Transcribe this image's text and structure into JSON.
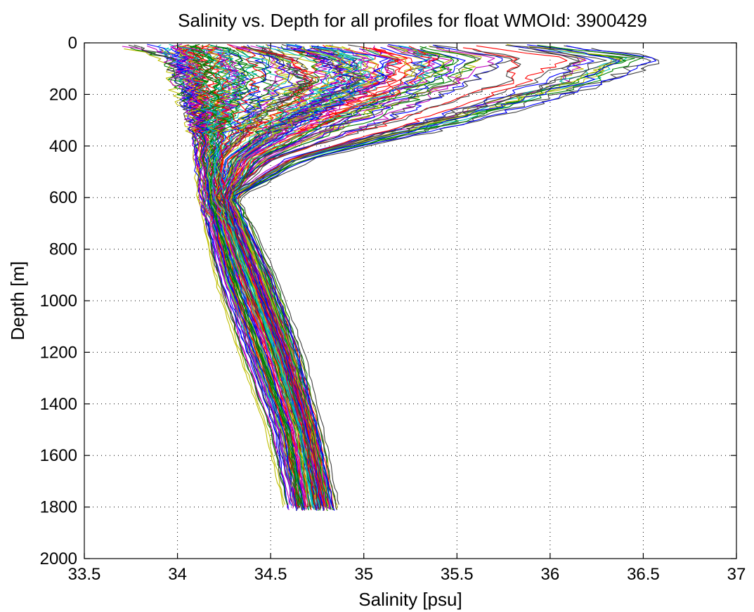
{
  "chart_data": {
    "type": "line",
    "title": "Salinity vs. Depth for all profiles for float WMOId: 3900429",
    "xlabel": "Salinity [psu]",
    "ylabel": "Depth [m]",
    "xlim": [
      33.5,
      37
    ],
    "ylim": [
      0,
      2000
    ],
    "y_reversed": true,
    "grid": true,
    "xticks": [
      33.5,
      34,
      34.5,
      35,
      35.5,
      36,
      36.5,
      37
    ],
    "yticks": [
      0,
      200,
      400,
      600,
      800,
      1000,
      1200,
      1400,
      1600,
      1800,
      2000
    ],
    "xtick_labels": [
      "33.5",
      "34",
      "34.5",
      "35",
      "35.5",
      "36",
      "36.5",
      "37"
    ],
    "ytick_labels": [
      "0",
      "200",
      "400",
      "600",
      "800",
      "1000",
      "1200",
      "1400",
      "1600",
      "1800",
      "2000"
    ],
    "series_colors": [
      "#0000ff",
      "#008000",
      "#ff0000",
      "#00bfbf",
      "#bf00bf",
      "#bfbf00",
      "#404040"
    ],
    "profile_count": 170,
    "series": [
      {
        "x": [
          33.9,
          34.0,
          34.05,
          34.12,
          34.13,
          34.15,
          34.25,
          34.4,
          34.55,
          34.62
        ],
        "y": [
          5,
          60,
          150,
          300,
          450,
          600,
          900,
          1200,
          1500,
          1810
        ]
      },
      {
        "x": [
          34.1,
          34.1,
          34.12,
          34.14,
          34.15,
          34.18,
          34.3,
          34.45,
          34.6,
          34.68
        ],
        "y": [
          5,
          60,
          150,
          300,
          450,
          600,
          900,
          1200,
          1500,
          1810
        ]
      },
      {
        "x": [
          34.0,
          34.05,
          34.1,
          34.15,
          34.18,
          34.22,
          34.35,
          34.5,
          34.63,
          34.7
        ],
        "y": [
          5,
          60,
          150,
          300,
          450,
          600,
          900,
          1200,
          1500,
          1810
        ]
      },
      {
        "x": [
          34.2,
          34.3,
          34.35,
          34.25,
          34.2,
          34.22,
          34.38,
          34.55,
          34.68,
          34.75
        ],
        "y": [
          5,
          60,
          150,
          300,
          450,
          600,
          900,
          1200,
          1500,
          1810
        ]
      },
      {
        "x": [
          34.6,
          34.8,
          35.0,
          34.6,
          34.3,
          34.25,
          34.42,
          34.58,
          34.7,
          34.78
        ],
        "y": [
          5,
          60,
          150,
          300,
          450,
          600,
          900,
          1200,
          1500,
          1810
        ]
      },
      {
        "x": [
          35.2,
          35.4,
          35.3,
          34.8,
          34.4,
          34.28,
          34.45,
          34.6,
          34.72,
          34.8
        ],
        "y": [
          5,
          60,
          150,
          300,
          450,
          600,
          900,
          1200,
          1500,
          1810
        ]
      },
      {
        "x": [
          36.0,
          36.6,
          36.3,
          35.6,
          34.7,
          34.3,
          34.5,
          34.65,
          34.75,
          34.84
        ],
        "y": [
          5,
          60,
          150,
          300,
          450,
          600,
          900,
          1200,
          1500,
          1810
        ]
      },
      {
        "x": [
          35.8,
          36.2,
          36.1,
          35.4,
          34.6,
          34.28,
          34.47,
          34.62,
          34.73,
          34.82
        ],
        "y": [
          5,
          60,
          150,
          300,
          450,
          600,
          900,
          1200,
          1500,
          1810
        ]
      },
      {
        "x": [
          33.7,
          33.95,
          34.0,
          34.1,
          34.12,
          34.14,
          34.22,
          34.35,
          34.5,
          34.6
        ],
        "y": [
          5,
          60,
          150,
          300,
          450,
          600,
          900,
          1200,
          1500,
          1810
        ]
      },
      {
        "x": [
          34.3,
          34.6,
          34.7,
          34.4,
          34.2,
          34.2,
          34.33,
          34.5,
          34.64,
          34.72
        ],
        "y": [
          5,
          60,
          150,
          300,
          450,
          600,
          900,
          1200,
          1500,
          1810
        ]
      }
    ]
  }
}
